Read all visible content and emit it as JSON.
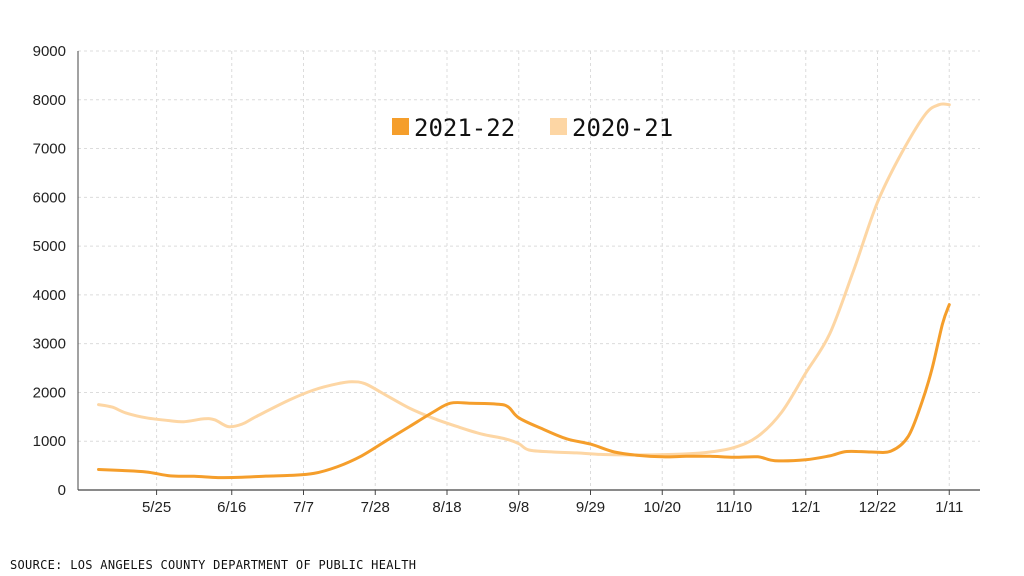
{
  "chart_data": {
    "type": "line",
    "title": "",
    "xlabel": "",
    "ylabel": "",
    "ylim": [
      0,
      9000
    ],
    "yticks": [
      0,
      1000,
      2000,
      3000,
      4000,
      5000,
      6000,
      7000,
      8000,
      9000
    ],
    "xtick_labels": [
      "5/25",
      "6/16",
      "7/7",
      "7/28",
      "8/18",
      "9/8",
      "9/29",
      "10/20",
      "11/10",
      "12/1",
      "12/22",
      "1/11"
    ],
    "xtick_positions": [
      3,
      25,
      46,
      67,
      88,
      109,
      130,
      151,
      172,
      193,
      214,
      235
    ],
    "grid": true,
    "legend_position": "top-center",
    "series": [
      {
        "name": "2021-22",
        "color": "#f59e2b",
        "points": [
          [
            -14,
            420
          ],
          [
            -7,
            400
          ],
          [
            0,
            370
          ],
          [
            7,
            290
          ],
          [
            14,
            280
          ],
          [
            21,
            255
          ],
          [
            28,
            260
          ],
          [
            35,
            285
          ],
          [
            42,
            300
          ],
          [
            49,
            340
          ],
          [
            56,
            480
          ],
          [
            63,
            700
          ],
          [
            70,
            1000
          ],
          [
            77,
            1300
          ],
          [
            84,
            1600
          ],
          [
            89,
            1780
          ],
          [
            95,
            1780
          ],
          [
            103,
            1760
          ],
          [
            106,
            1700
          ],
          [
            109,
            1480
          ],
          [
            116,
            1250
          ],
          [
            123,
            1050
          ],
          [
            130,
            940
          ],
          [
            137,
            780
          ],
          [
            144,
            710
          ],
          [
            151,
            680
          ],
          [
            158,
            690
          ],
          [
            165,
            690
          ],
          [
            172,
            670
          ],
          [
            179,
            680
          ],
          [
            184,
            600
          ],
          [
            193,
            620
          ],
          [
            200,
            700
          ],
          [
            205,
            790
          ],
          [
            212,
            780
          ],
          [
            218,
            800
          ],
          [
            223,
            1100
          ],
          [
            227,
            1800
          ],
          [
            230,
            2500
          ],
          [
            233,
            3400
          ],
          [
            235,
            3800
          ]
        ]
      },
      {
        "name": "2020-21",
        "color": "#fdd6a4",
        "points": [
          [
            -14,
            1750
          ],
          [
            -10,
            1700
          ],
          [
            -6,
            1580
          ],
          [
            0,
            1480
          ],
          [
            7,
            1420
          ],
          [
            11,
            1400
          ],
          [
            17,
            1460
          ],
          [
            20,
            1440
          ],
          [
            24,
            1300
          ],
          [
            28,
            1350
          ],
          [
            32,
            1500
          ],
          [
            42,
            1850
          ],
          [
            49,
            2050
          ],
          [
            56,
            2180
          ],
          [
            60,
            2220
          ],
          [
            64,
            2180
          ],
          [
            70,
            1950
          ],
          [
            77,
            1680
          ],
          [
            84,
            1470
          ],
          [
            91,
            1300
          ],
          [
            98,
            1150
          ],
          [
            105,
            1050
          ],
          [
            109,
            950
          ],
          [
            112,
            820
          ],
          [
            119,
            780
          ],
          [
            126,
            760
          ],
          [
            133,
            730
          ],
          [
            140,
            720
          ],
          [
            147,
            720
          ],
          [
            158,
            740
          ],
          [
            165,
            780
          ],
          [
            172,
            870
          ],
          [
            179,
            1100
          ],
          [
            186,
            1600
          ],
          [
            193,
            2400
          ],
          [
            200,
            3200
          ],
          [
            207,
            4500
          ],
          [
            214,
            5900
          ],
          [
            221,
            6900
          ],
          [
            228,
            7700
          ],
          [
            232,
            7900
          ],
          [
            235,
            7900
          ]
        ]
      }
    ]
  },
  "source_text": "SOURCE: LOS ANGELES COUNTY DEPARTMENT OF PUBLIC HEALTH"
}
